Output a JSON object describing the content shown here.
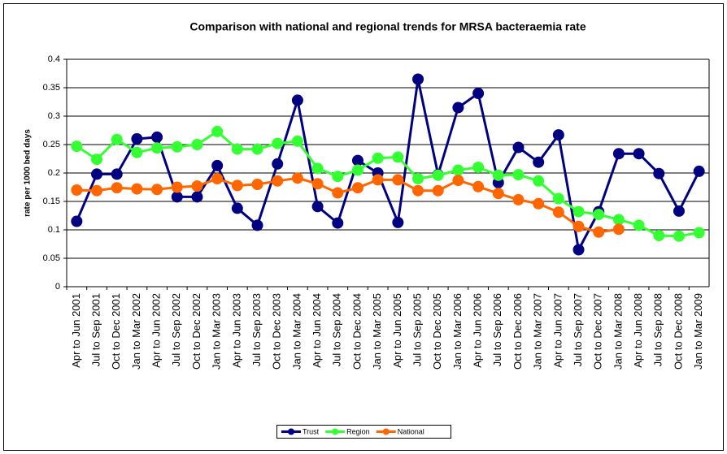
{
  "chart_data": {
    "type": "line",
    "title": "Comparison with national and regional trends for MRSA bacteraemia rate",
    "y_label": "rate per 1000 bed days",
    "categories": [
      "Apr to Jun 2001",
      "Jul to Sep 2001",
      "Oct to Dec 2001",
      "Jan to Mar 2002",
      "Apr to Jun 2002",
      "Jul to Sep 2002",
      "Oct to Dec 2002",
      "Jan to Mar 2003",
      "Apr to Jun 2003",
      "Jul to Sep 2003",
      "Oct to Dec 2003",
      "Jan to Mar 2004",
      "Apr to Jun 2004",
      "Jul to Sep 2004",
      "Oct to Dec 2004",
      "Jan to Mar 2005",
      "Apr to Jun 2005",
      "Jul to Sep 2005",
      "Oct to Dec 2005",
      "Jan to Mar 2006",
      "Apr to Jun 2006",
      "Jul to Sep 2006",
      "Oct to Dec 2006",
      "Jan to Mar 2007",
      "Apr to Jun 2007",
      "Jul to Sep 2007",
      "Oct to Dec 2007",
      "Jan to Mar 2008",
      "Apr to Jun 2008",
      "Jul to Sep 2008",
      "Oct to Dec 2008",
      "Jan to Mar 2009"
    ],
    "series": [
      {
        "name": "Trust",
        "color": "#000080",
        "values": [
          0.115,
          0.198,
          0.198,
          0.26,
          0.263,
          0.158,
          0.158,
          0.213,
          0.138,
          0.108,
          0.216,
          0.328,
          0.141,
          0.112,
          0.222,
          0.2,
          0.113,
          0.365,
          0.197,
          0.315,
          0.34,
          0.183,
          0.245,
          0.219,
          0.267,
          0.065,
          0.132,
          0.234,
          0.234,
          0.199,
          0.133,
          0.203
        ]
      },
      {
        "name": "Region",
        "color": "#33ff33",
        "values": [
          0.247,
          0.224,
          0.259,
          0.236,
          0.244,
          0.246,
          0.25,
          0.273,
          0.242,
          0.242,
          0.252,
          0.256,
          0.208,
          0.194,
          0.205,
          0.226,
          0.228,
          0.19,
          0.196,
          0.205,
          0.21,
          0.196,
          0.197,
          0.186,
          0.155,
          0.132,
          0.127,
          0.118,
          0.108,
          0.09,
          0.089,
          0.095
        ]
      },
      {
        "name": "National",
        "color": "#ff6600",
        "values": [
          0.17,
          0.169,
          0.174,
          0.172,
          0.171,
          0.175,
          0.177,
          0.19,
          0.178,
          0.18,
          0.186,
          0.191,
          0.181,
          0.165,
          0.174,
          0.188,
          0.188,
          0.169,
          0.169,
          0.187,
          0.176,
          0.164,
          0.153,
          0.146,
          0.131,
          0.106,
          0.096,
          0.101,
          null,
          null,
          null,
          null
        ]
      }
    ],
    "ylim": [
      0,
      0.4
    ],
    "yticks": [
      0,
      0.05,
      0.1,
      0.15,
      0.2,
      0.25,
      0.3,
      0.35,
      0.4
    ],
    "grid": true,
    "legend": "bottom"
  }
}
